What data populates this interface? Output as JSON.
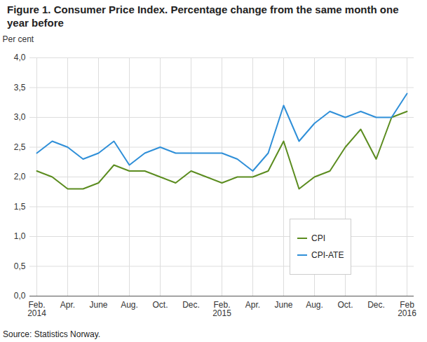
{
  "chart_data": {
    "type": "line",
    "title": "Figure 1. Consumer Price Index. Percentage change from the same month one year before",
    "y_label": "Per cent",
    "caption": "Source: Statistics Norway.",
    "categories": [
      "Feb.\n2014",
      null,
      "Apr.",
      null,
      "June",
      null,
      "Aug.",
      null,
      "Oct.",
      null,
      "Dec.",
      null,
      "Feb.\n2015",
      null,
      "Apr.",
      null,
      "June",
      null,
      "Aug.",
      null,
      "Oct.",
      null,
      "Dec.",
      null,
      "Feb\n2016"
    ],
    "series": [
      {
        "name": "CPI",
        "color": "#5b8c1f",
        "values": [
          2.1,
          2.0,
          1.8,
          1.8,
          1.9,
          2.2,
          2.1,
          2.1,
          2.0,
          1.9,
          2.1,
          2.0,
          1.9,
          2.0,
          2.0,
          2.1,
          2.6,
          1.8,
          2.0,
          2.1,
          2.5,
          2.8,
          2.3,
          3.0,
          3.1
        ]
      },
      {
        "name": "CPI-ATE",
        "color": "#2f8fd8",
        "values": [
          2.4,
          2.6,
          2.5,
          2.3,
          2.4,
          2.6,
          2.2,
          2.4,
          2.5,
          2.4,
          2.4,
          2.4,
          2.4,
          2.3,
          2.1,
          2.4,
          3.2,
          2.6,
          2.9,
          3.1,
          3.0,
          3.1,
          3.0,
          3.0,
          3.4
        ]
      }
    ],
    "ylim": [
      0,
      4
    ],
    "yticks": [
      {
        "value": 0,
        "label": "0,0"
      },
      {
        "value": 0.5,
        "label": "0,5"
      },
      {
        "value": 1,
        "label": "1,0"
      },
      {
        "value": 1.5,
        "label": "1,5"
      },
      {
        "value": 2,
        "label": "2,0"
      },
      {
        "value": 2.5,
        "label": "2,5"
      },
      {
        "value": 3,
        "label": "3,0"
      },
      {
        "value": 3.5,
        "label": "3,5"
      },
      {
        "value": 4,
        "label": "4,0"
      }
    ],
    "grid": true,
    "legend": "lower right"
  }
}
